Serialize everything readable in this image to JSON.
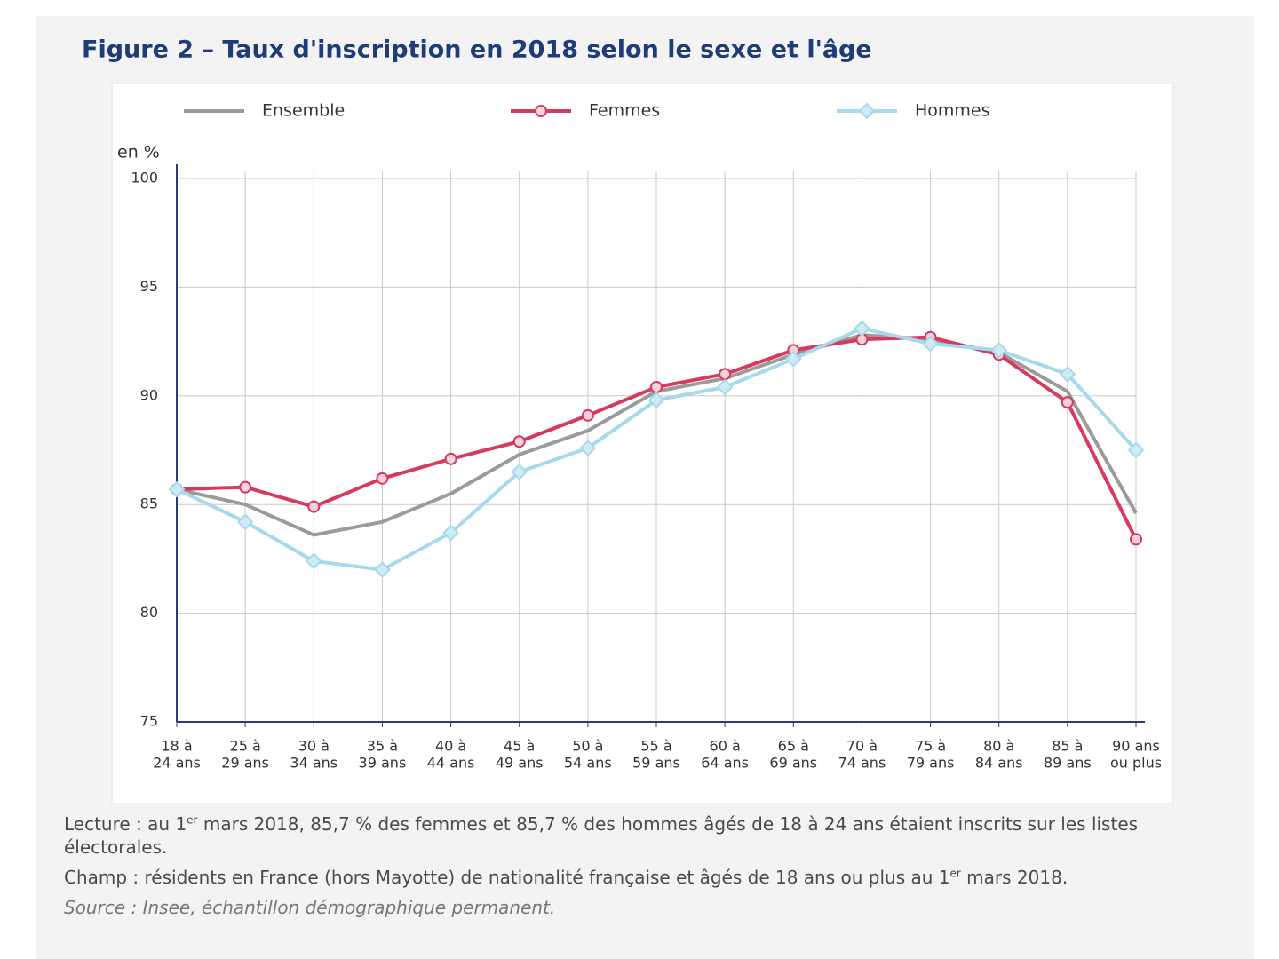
{
  "chart_data": {
    "type": "line",
    "title": "Figure 2 – Taux d'inscription en 2018 selon le sexe et l'âge",
    "ylabel": "en %",
    "categories": [
      [
        "18 à",
        "24 ans"
      ],
      [
        "25 à",
        "29 ans"
      ],
      [
        "30 à",
        "34 ans"
      ],
      [
        "35 à",
        "39 ans"
      ],
      [
        "40 à",
        "44 ans"
      ],
      [
        "45 à",
        "49 ans"
      ],
      [
        "50 à",
        "54 ans"
      ],
      [
        "55 à",
        "59 ans"
      ],
      [
        "60 à",
        "64 ans"
      ],
      [
        "65 à",
        "69 ans"
      ],
      [
        "70 à",
        "74 ans"
      ],
      [
        "75 à",
        "79 ans"
      ],
      [
        "80 à",
        "84 ans"
      ],
      [
        "85 à",
        "89 ans"
      ],
      [
        "90 ans",
        "ou plus"
      ]
    ],
    "series": [
      {
        "name": "Ensemble",
        "color": "#9b9b9b",
        "marker": "none",
        "values": [
          85.7,
          85.0,
          83.6,
          84.2,
          85.5,
          87.3,
          88.4,
          90.2,
          90.8,
          91.9,
          92.8,
          92.6,
          92.0,
          90.2,
          84.6
        ]
      },
      {
        "name": "Femmes",
        "color": "#d63a5e",
        "marker": "circle",
        "values": [
          85.7,
          85.8,
          84.9,
          86.2,
          87.1,
          87.9,
          89.1,
          90.4,
          91.0,
          92.1,
          92.6,
          92.7,
          91.9,
          89.7,
          83.4
        ]
      },
      {
        "name": "Hommes",
        "color": "#a6d9ec",
        "marker": "diamond",
        "values": [
          85.7,
          84.2,
          82.4,
          82.0,
          83.7,
          86.5,
          87.6,
          89.8,
          90.4,
          91.7,
          93.1,
          92.4,
          92.1,
          91.0,
          87.5
        ]
      }
    ],
    "ylim": [
      75,
      100
    ],
    "yticks": [
      75,
      80,
      85,
      90,
      95,
      100
    ],
    "grid": true,
    "legend": "top",
    "notes": {
      "lecture": [
        "Lecture : au 1",
        "er",
        " mars 2018, 85,7 % des femmes et 85,7 % des hommes âgés de 18 à 24 ans étaient inscrits sur les listes électorales."
      ],
      "champ": [
        "Champ : résidents en France (hors Mayotte) de nationalité française et âgés de 18 ans ou plus au 1",
        "er",
        " mars 2018."
      ],
      "source": "Source : Insee, échantillon démographique permanent."
    }
  }
}
